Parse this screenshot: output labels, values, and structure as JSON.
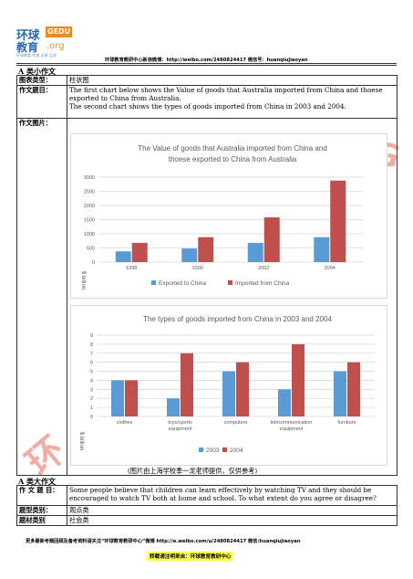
{
  "logo": {
    "cn_top": "环球",
    "badge": "GEDU",
    "cn_bottom": "教育",
    "org": ".org",
    "slogan": "环球教育 传递 全球 品质"
  },
  "header": {
    "text": "环球教育教研中心新浪微博：http://weibo.com/2480824417  微信号：huanqiujiaoyan"
  },
  "section_a": "A 类小作文",
  "table_a": {
    "chart_type_label": "图表类型：",
    "chart_type": "柱状图",
    "topic_label": "作文题目：",
    "topic_line1": "The first chart below shows the Value of goods that Australia imported from China and thoese exported to China from Australia.",
    "topic_line2": "The second chart shows the types of goods imported from China in 2003 and 2004.",
    "image_label": "作文图片："
  },
  "chart_data": [
    {
      "type": "bar",
      "title": "The Value of goods that Australia imported from China and thoese exported to China from Australia",
      "categories": [
        "1998",
        "2000",
        "2002",
        "2004"
      ],
      "series": [
        {
          "name": "Exported to China",
          "values": [
            380,
            480,
            680,
            880
          ]
        },
        {
          "name": "Imported from China",
          "values": [
            680,
            880,
            1580,
            2880
          ]
        }
      ],
      "ylabel": "$ billion",
      "ylim": [
        0,
        3000
      ],
      "yticks": [
        0,
        500,
        1000,
        1500,
        2000,
        2500,
        3000
      ],
      "legend": "bottom",
      "grid": true,
      "colors": [
        "#5b9bd5",
        "#c0504d"
      ]
    },
    {
      "type": "bar",
      "title": "The types of goods imported from China in 2003 and 2004",
      "categories": [
        "clothes",
        "toys/sports equipment",
        "computers",
        "telecommunication equipment",
        "furniture"
      ],
      "series": [
        {
          "name": "2003",
          "values": [
            4,
            2,
            5,
            3,
            5
          ]
        },
        {
          "name": "2004",
          "values": [
            4,
            7,
            6,
            8,
            6
          ]
        }
      ],
      "ylabel": "$ billion",
      "ylim": [
        0,
        9
      ],
      "yticks": [
        0,
        1,
        2,
        3,
        4,
        5,
        6,
        7,
        8,
        9
      ],
      "legend": "bottom",
      "grid": true,
      "colors": [
        "#5b9bd5",
        "#c0504d"
      ]
    }
  ],
  "caption": "(图片由上海学校季一龙老师提供，仅供参考)",
  "section_b": "A 类大作文",
  "table_b": {
    "topic_label": "作 文 题 目：",
    "topic": "Some people believe that children can learn effectively by watching TV and they should be encouraged to watch TV both at home and school. To what extent do you agree or disagree?",
    "type_label": "题型类别：",
    "type": "观点类",
    "material_label": "题材类别",
    "material": "社会类"
  },
  "footer": {
    "line1": "更多最新考题回顾及备考资料请关注“环球教育教研中心”微博 http://e.weibo.com/u/2480824417  微信:huanqiujiaoyan",
    "line2": "转载请注明来自：环球教育教研中心"
  }
}
